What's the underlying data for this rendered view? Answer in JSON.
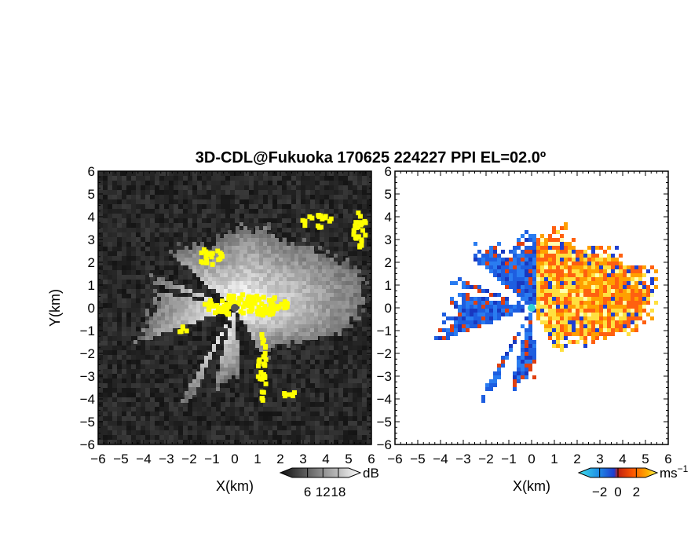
{
  "title": "3D-CDL@Fukuoka 170625 224227 PPI EL=02.0º",
  "chart_data": [
    {
      "type": "heatmap",
      "panel": "reflectivity",
      "xlabel": "X(km)",
      "ylabel": "Y(km)",
      "xlim": [
        -6,
        6
      ],
      "ylim": [
        -6,
        6
      ],
      "xticks": [
        "−6",
        "−5",
        "−4",
        "−3",
        "−2",
        "−1",
        "0",
        "1",
        "2",
        "3",
        "4",
        "5",
        "6"
      ],
      "yticks": [
        "6",
        "5",
        "4",
        "3",
        "2",
        "1",
        "0",
        "−1",
        "−2",
        "−3",
        "−4",
        "−5",
        "−6"
      ],
      "radar_site": [
        0,
        0
      ],
      "colorbar": {
        "unit": "dB",
        "ticks": [
          "6",
          "12",
          "18"
        ],
        "tick_values": [
          6,
          12,
          18
        ],
        "range": [
          0,
          22
        ],
        "colormap": "grayscale",
        "low_color": "#101010",
        "high_color": "#ffffff",
        "overlay_color": "#ffff00"
      },
      "blocked_sectors_deg": [
        [
          140,
          158
        ],
        [
          163,
          168
        ],
        [
          200,
          240
        ],
        [
          245,
          255
        ],
        [
          275,
          300
        ]
      ]
    },
    {
      "type": "heatmap",
      "panel": "doppler-velocity",
      "xlabel": "X(km)",
      "ylabel": "",
      "xlim": [
        -6,
        6
      ],
      "ylim": [
        -6,
        6
      ],
      "xticks": [
        "−6",
        "−5",
        "−4",
        "−3",
        "−2",
        "−1",
        "0",
        "1",
        "2",
        "3",
        "4",
        "5",
        "6"
      ],
      "yticks": [
        "6",
        "5",
        "4",
        "3",
        "2",
        "1",
        "0",
        "−1",
        "−2",
        "−3",
        "−4",
        "−5",
        "−6"
      ],
      "radar_site": [
        0,
        0
      ],
      "colorbar": {
        "unit": "ms",
        "unit_exponent": "−1",
        "ticks": [
          "−2",
          "0",
          "2"
        ],
        "tick_values": [
          -2,
          0,
          2
        ],
        "range": [
          -3,
          3
        ],
        "colormap": "cyan-blue-red-yellow",
        "negative_color": "#1e6ee6",
        "positive_color": "#e85010",
        "high_color": "#ffff40"
      },
      "blocked_sectors_deg": [
        [
          140,
          158
        ],
        [
          163,
          168
        ],
        [
          200,
          240
        ],
        [
          245,
          255
        ],
        [
          275,
          300
        ]
      ]
    }
  ],
  "colors": {
    "site_marker_left": "#555555",
    "site_marker_right": "#30d0d0",
    "frame": "#000000"
  }
}
